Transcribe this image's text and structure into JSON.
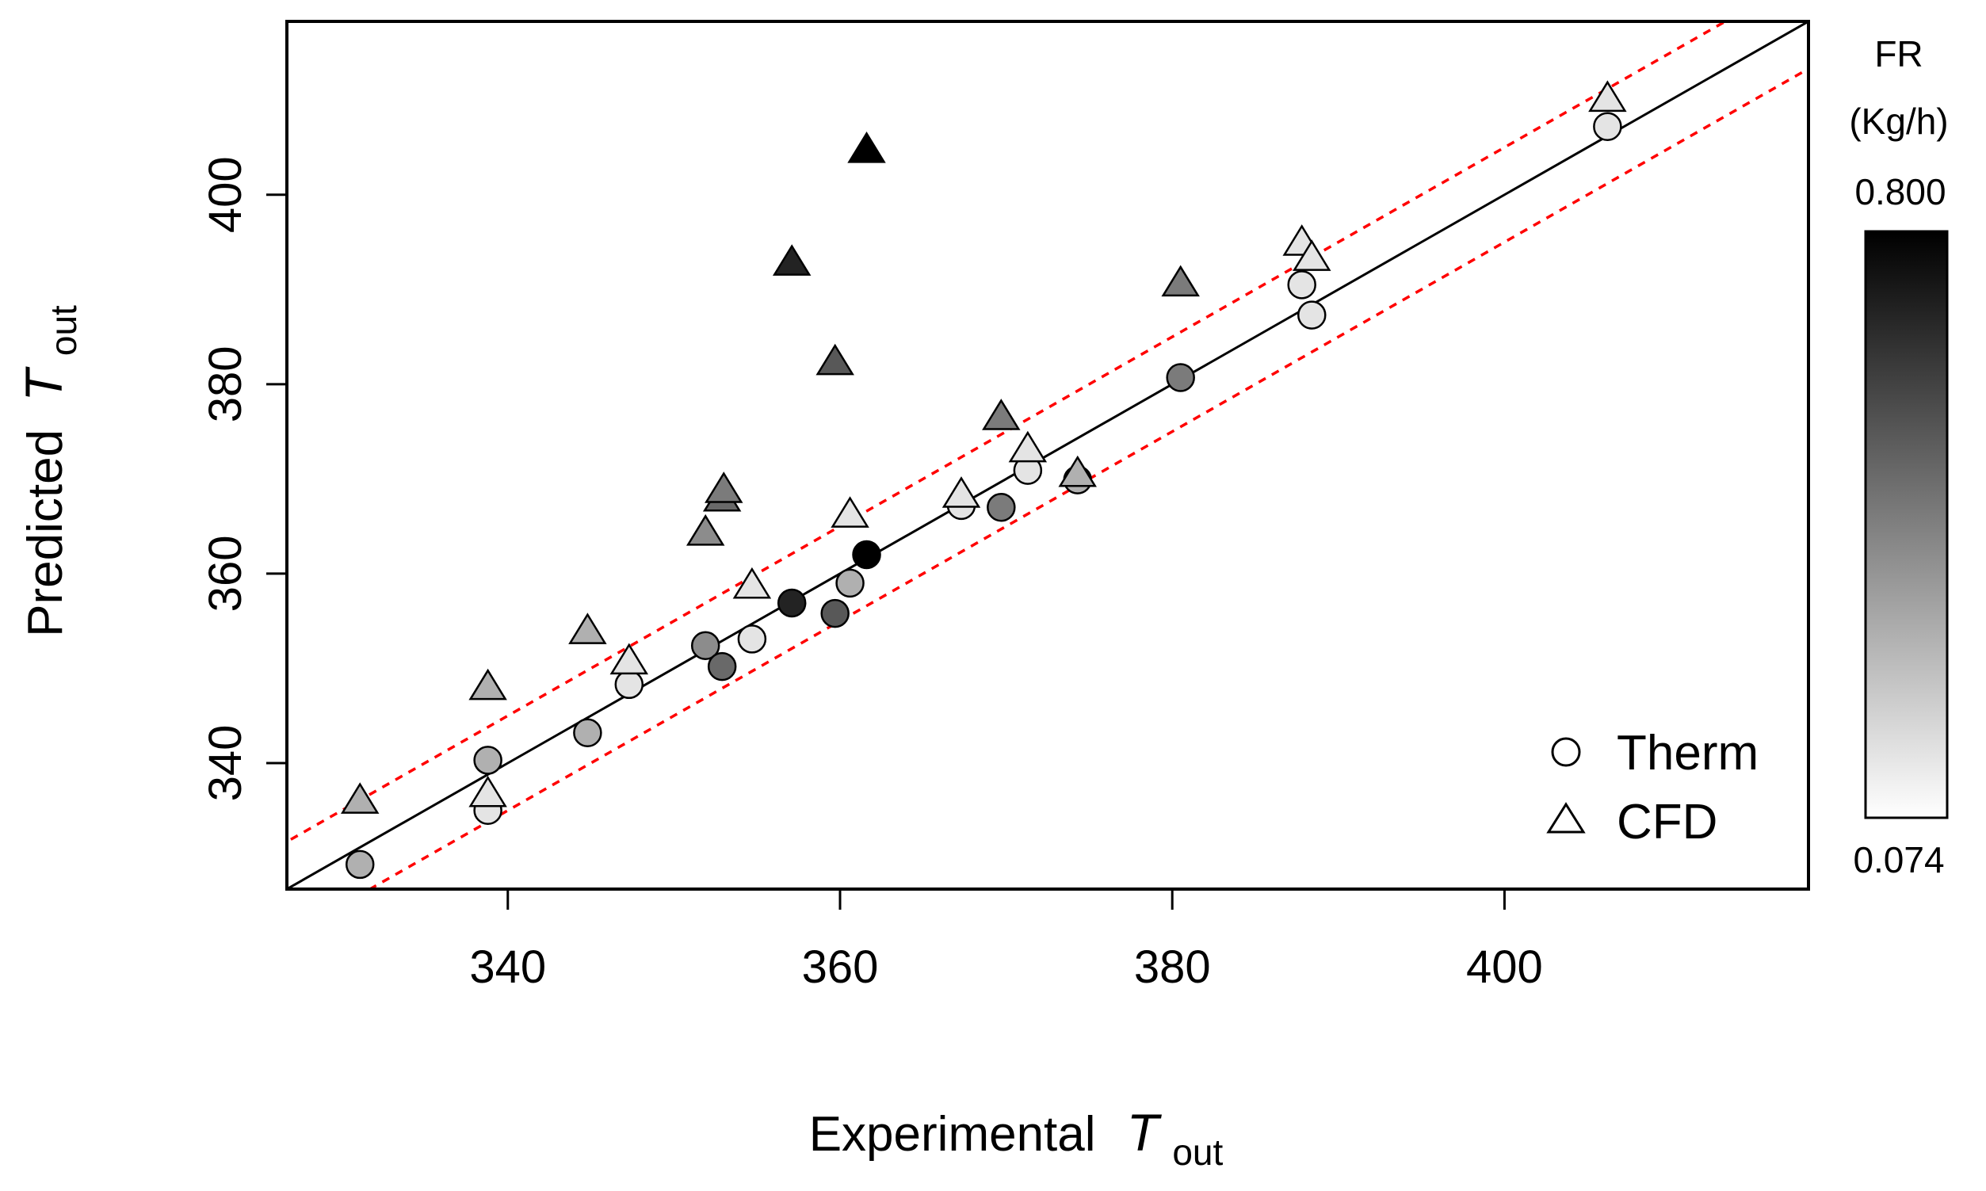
{
  "chart_data": {
    "type": "scatter",
    "title": "",
    "xlabel": {
      "main": "Experimental",
      "var": "T",
      "sub": "out"
    },
    "ylabel": {
      "main": "Predicted",
      "var": "T",
      "sub": "out"
    },
    "xlim": [
      326.7,
      418.3
    ],
    "ylim": [
      326.7,
      418.3
    ],
    "xticks": [
      340,
      360,
      380,
      400
    ],
    "yticks": [
      340,
      360,
      380,
      400
    ],
    "x_tick_labels": [
      "340",
      "360",
      "380",
      "400"
    ],
    "y_tick_labels": [
      "340",
      "360",
      "380",
      "400"
    ],
    "reference_lines": [
      {
        "name": "identity",
        "offset": 0,
        "color": "#000000",
        "style": "solid"
      },
      {
        "name": "upper-band",
        "offset": 5,
        "color": "#ff0000",
        "style": "dashed"
      },
      {
        "name": "lower-band",
        "offset": -5,
        "color": "#ff0000",
        "style": "dashed"
      }
    ],
    "legend": {
      "position": "bottom-right",
      "entries": [
        {
          "label": "Therm",
          "marker": "circle"
        },
        {
          "label": "CFD",
          "marker": "triangle"
        }
      ]
    },
    "colorbar": {
      "title_line1": "FR",
      "title_line2": "(Kg/h)",
      "max_label": "0.800",
      "min_label": "0.074",
      "max": 0.8,
      "min": 0.074,
      "color_high": "#000000",
      "color_low": "#ffffff"
    },
    "series": [
      {
        "name": "Therm",
        "marker": "circle",
        "points": [
          {
            "x": 331.1,
            "y": 329.3,
            "fr": 0.3
          },
          {
            "x": 338.8,
            "y": 335.0,
            "fr": 0.15
          },
          {
            "x": 338.8,
            "y": 340.3,
            "fr": 0.3
          },
          {
            "x": 344.8,
            "y": 343.2,
            "fr": 0.3
          },
          {
            "x": 347.3,
            "y": 348.3,
            "fr": 0.15
          },
          {
            "x": 351.9,
            "y": 352.4,
            "fr": 0.4
          },
          {
            "x": 352.9,
            "y": 350.2,
            "fr": 0.5
          },
          {
            "x": 354.7,
            "y": 353.1,
            "fr": 0.15
          },
          {
            "x": 357.1,
            "y": 356.9,
            "fr": 0.7
          },
          {
            "x": 359.7,
            "y": 355.8,
            "fr": 0.55
          },
          {
            "x": 360.6,
            "y": 359.0,
            "fr": 0.3
          },
          {
            "x": 361.6,
            "y": 362.0,
            "fr": 0.8
          },
          {
            "x": 367.3,
            "y": 367.2,
            "fr": 0.15
          },
          {
            "x": 369.7,
            "y": 367.0,
            "fr": 0.45
          },
          {
            "x": 371.3,
            "y": 370.9,
            "fr": 0.15
          },
          {
            "x": 374.3,
            "y": 369.9,
            "fr": 0.3
          },
          {
            "x": 380.5,
            "y": 380.7,
            "fr": 0.45
          },
          {
            "x": 387.8,
            "y": 390.5,
            "fr": 0.15
          },
          {
            "x": 388.4,
            "y": 387.3,
            "fr": 0.15
          },
          {
            "x": 406.2,
            "y": 407.2,
            "fr": 0.15
          }
        ]
      },
      {
        "name": "CFD",
        "marker": "triangle",
        "points": [
          {
            "x": 331.1,
            "y": 336.1,
            "fr": 0.3
          },
          {
            "x": 338.8,
            "y": 336.8,
            "fr": 0.15
          },
          {
            "x": 338.8,
            "y": 348.1,
            "fr": 0.3
          },
          {
            "x": 344.8,
            "y": 354.0,
            "fr": 0.3
          },
          {
            "x": 347.3,
            "y": 350.8,
            "fr": 0.15
          },
          {
            "x": 351.9,
            "y": 364.4,
            "fr": 0.4
          },
          {
            "x": 352.9,
            "y": 368.0,
            "fr": 0.5
          },
          {
            "x": 353.0,
            "y": 368.9,
            "fr": 0.45
          },
          {
            "x": 354.7,
            "y": 358.8,
            "fr": 0.15
          },
          {
            "x": 357.1,
            "y": 392.9,
            "fr": 0.7
          },
          {
            "x": 359.7,
            "y": 382.4,
            "fr": 0.55
          },
          {
            "x": 360.6,
            "y": 366.3,
            "fr": 0.15
          },
          {
            "x": 361.6,
            "y": 404.8,
            "fr": 0.8
          },
          {
            "x": 367.3,
            "y": 368.4,
            "fr": 0.15
          },
          {
            "x": 369.7,
            "y": 376.6,
            "fr": 0.45
          },
          {
            "x": 371.3,
            "y": 373.2,
            "fr": 0.15
          },
          {
            "x": 374.3,
            "y": 370.6,
            "fr": 0.3
          },
          {
            "x": 380.5,
            "y": 390.7,
            "fr": 0.45
          },
          {
            "x": 387.8,
            "y": 395.0,
            "fr": 0.15
          },
          {
            "x": 388.4,
            "y": 393.4,
            "fr": 0.15
          },
          {
            "x": 406.2,
            "y": 410.2,
            "fr": 0.15
          }
        ]
      }
    ]
  }
}
